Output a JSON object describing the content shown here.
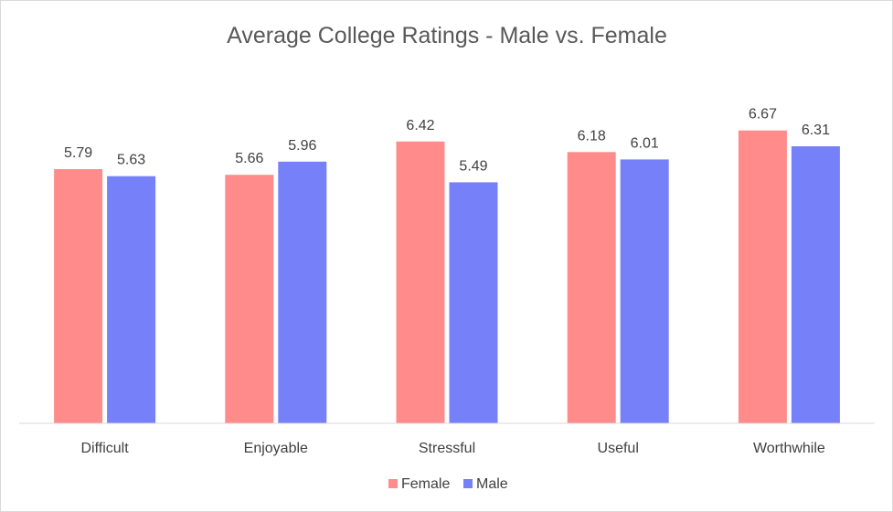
{
  "chart_data": {
    "type": "bar",
    "title": "Average College Ratings - Male vs. Female",
    "xlabel": "",
    "ylabel": "",
    "categories": [
      "Difficult",
      "Enjoyable",
      "Stressful",
      "Useful",
      "Worthwhile"
    ],
    "series": [
      {
        "name": "Female",
        "color": "#ff8b8b",
        "values": [
          5.79,
          5.66,
          6.42,
          6.18,
          6.67
        ],
        "labels": [
          "5.79",
          "5.66",
          "6.42",
          "6.18",
          "6.67"
        ]
      },
      {
        "name": "Male",
        "color": "#7680f8",
        "values": [
          5.63,
          5.96,
          5.49,
          6.01,
          6.31
        ],
        "labels": [
          "5.63",
          "5.96",
          "5.49",
          "6.01",
          "6.31"
        ]
      }
    ],
    "ylim": [
      0,
      7
    ],
    "grid": false,
    "legend_position": "bottom",
    "axis_color": "#d9d9d9"
  }
}
